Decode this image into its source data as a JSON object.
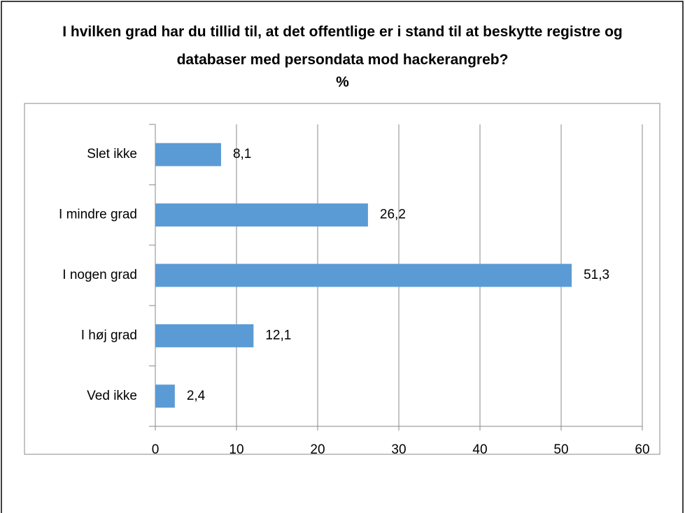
{
  "chart_data": {
    "type": "bar",
    "orientation": "horizontal",
    "title": "I hvilken grad har du tillid til, at det offentlige er i stand til at beskytte registre og databaser med persondata mod hackerangreb?",
    "subtitle": "%",
    "categories": [
      "Slet ikke",
      "I mindre grad",
      "I nogen grad",
      "I høj grad",
      "Ved ikke"
    ],
    "values": [
      8.1,
      26.2,
      51.3,
      12.1,
      2.4
    ],
    "value_labels": [
      "8,1",
      "26,2",
      "51,3",
      "12,1",
      "2,4"
    ],
    "color": "#5b9bd5",
    "xlim": [
      0,
      60
    ],
    "xticks": [
      0,
      10,
      20,
      30,
      40,
      50,
      60
    ],
    "grid": true
  }
}
